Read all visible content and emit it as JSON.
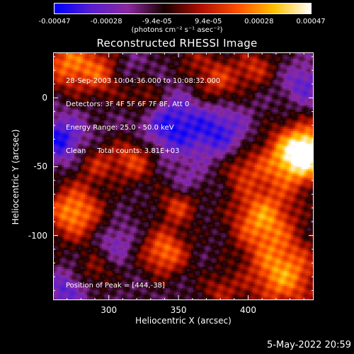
{
  "colorbar": {
    "ticks": [
      "-0.00047",
      "-0.00028",
      "-9.4e-05",
      "9.4e-05",
      "0.00028",
      "0.00047"
    ],
    "tick_values": [
      -0.00047,
      -0.00028,
      -9.4e-05,
      9.4e-05,
      0.00028,
      0.00047
    ],
    "range": [
      -0.00047,
      0.00047
    ],
    "unit_label": "(photons cm⁻² s⁻¹ asec⁻²)",
    "colors": [
      "#0000ff",
      "#5a1fd0",
      "#8c2aa0",
      "#1a0000",
      "#b01000",
      "#ff5000",
      "#ffc000",
      "#ffffff"
    ]
  },
  "chart_data": {
    "type": "heatmap",
    "title": "Reconstructed RHESSI Image",
    "xlabel": "Heliocentric X (arcsec)",
    "ylabel": "Heliocentric Y (arcsec)",
    "xlim": [
      260,
      447
    ],
    "ylim": [
      -147,
      33
    ],
    "xticks": [
      300,
      350,
      400
    ],
    "yticks": [
      0,
      -50,
      -100
    ],
    "info_lines": [
      "28-Sep-2003 10:04:36.000 to 10:08:32.000",
      "Detectors: 3F 4F 5F 6F 7F 8F, Att 0",
      "Energy Range: 25.0 - 50.0 keV",
      "Clean     Total counts: 3.81E+03"
    ],
    "peak_label": "Position of Peak = [444,-38]",
    "peak": [
      444,
      -38
    ],
    "sources": [
      {
        "x": 272,
        "y": 25,
        "amp": 0.00035,
        "sigma": 14
      },
      {
        "x": 300,
        "y": 18,
        "amp": 0.0003,
        "sigma": 12
      },
      {
        "x": 327,
        "y": 0,
        "amp": 0.0002,
        "sigma": 10
      },
      {
        "x": 378,
        "y": 12,
        "amp": 0.00025,
        "sigma": 12
      },
      {
        "x": 405,
        "y": 22,
        "amp": 0.00022,
        "sigma": 10
      },
      {
        "x": 360,
        "y": 30,
        "amp": 0.00012,
        "sigma": 10
      },
      {
        "x": 318,
        "y": -45,
        "amp": 0.00028,
        "sigma": 12
      },
      {
        "x": 290,
        "y": -48,
        "amp": 0.00018,
        "sigma": 10
      },
      {
        "x": 395,
        "y": -52,
        "amp": 0.0002,
        "sigma": 11
      },
      {
        "x": 430,
        "y": -45,
        "amp": 0.0004,
        "sigma": 16
      },
      {
        "x": 444,
        "y": -38,
        "amp": 0.00045,
        "sigma": 12
      },
      {
        "x": 275,
        "y": -83,
        "amp": 0.0004,
        "sigma": 14
      },
      {
        "x": 350,
        "y": -78,
        "amp": 0.00025,
        "sigma": 10
      },
      {
        "x": 410,
        "y": -88,
        "amp": 0.00038,
        "sigma": 16
      },
      {
        "x": 340,
        "y": -112,
        "amp": 0.00035,
        "sigma": 12
      },
      {
        "x": 290,
        "y": -125,
        "amp": 0.00015,
        "sigma": 10
      },
      {
        "x": 425,
        "y": -128,
        "amp": 0.0004,
        "sigma": 18
      },
      {
        "x": 380,
        "y": -140,
        "amp": 0.00018,
        "sigma": 10
      },
      {
        "x": 310,
        "y": 20,
        "amp": -0.0002,
        "sigma": 10
      },
      {
        "x": 345,
        "y": -20,
        "amp": -0.0003,
        "sigma": 16
      },
      {
        "x": 380,
        "y": -25,
        "amp": -0.00025,
        "sigma": 14
      },
      {
        "x": 265,
        "y": -30,
        "amp": -0.0003,
        "sigma": 12
      },
      {
        "x": 305,
        "y": -105,
        "amp": -0.00015,
        "sigma": 10
      },
      {
        "x": 355,
        "y": -62,
        "amp": -0.00012,
        "sigma": 8
      },
      {
        "x": 440,
        "y": 10,
        "amp": -0.0002,
        "sigma": 10
      },
      {
        "x": 270,
        "y": -140,
        "amp": -0.0002,
        "sigma": 10
      }
    ]
  },
  "timestamp": "5-May-2022 20:59"
}
